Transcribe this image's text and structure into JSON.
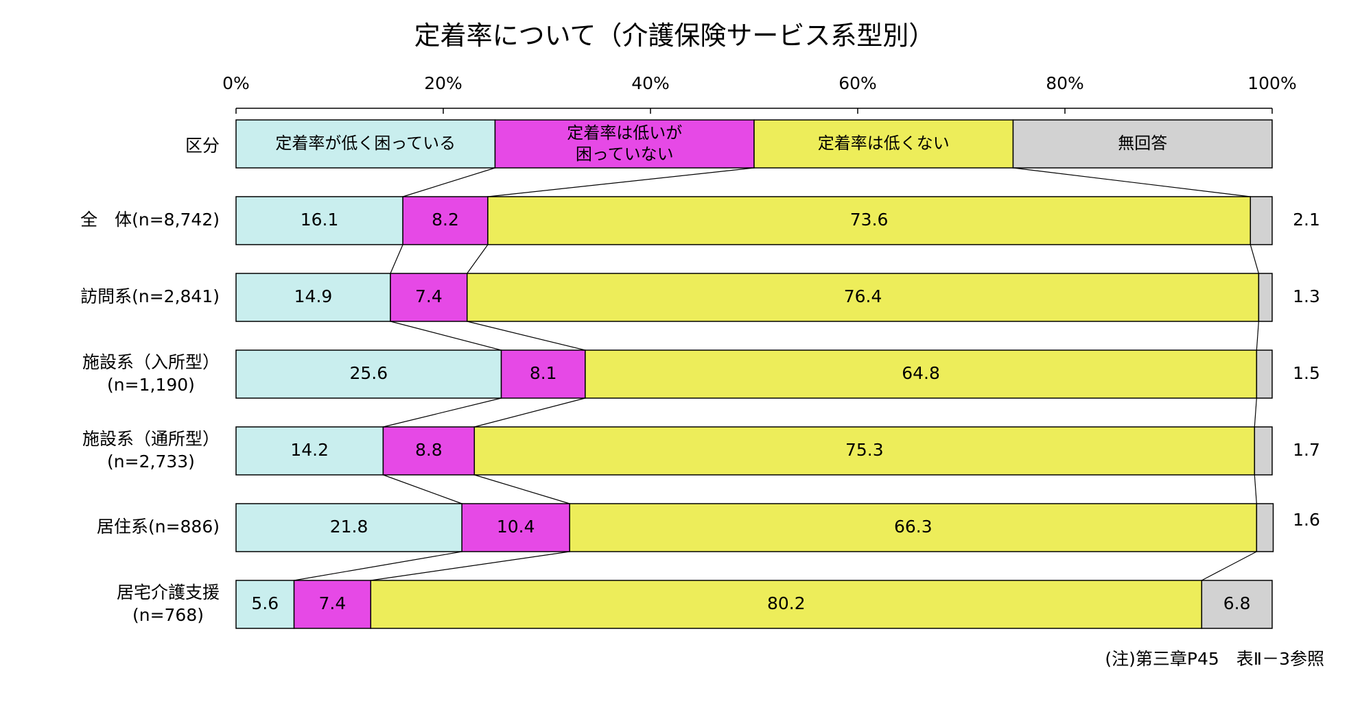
{
  "chart_data": {
    "type": "bar",
    "stacked": true,
    "orientation": "horizontal",
    "title": "定着率について（介護保険サービス系型別）",
    "legend_title": "区分",
    "categories": [
      "全　体(n=8,742)",
      "訪問系(n=2,841)",
      "施設系（入所型）\n(n=1,190)",
      "施設系（通所型）\n(n=2,733)",
      "居住系(n=886)",
      "居宅介護支援\n(n=768)"
    ],
    "series": [
      {
        "name": "定着率が低く困っている",
        "color": "#c9eeee",
        "values": [
          16.1,
          14.9,
          25.6,
          14.2,
          21.8,
          5.6
        ]
      },
      {
        "name": "定着率は低いが\n困っていない",
        "color": "#e649e6",
        "values": [
          8.2,
          7.4,
          8.1,
          8.8,
          10.4,
          7.4
        ]
      },
      {
        "name": "定着率は低くない",
        "color": "#eded5a",
        "values": [
          73.6,
          76.4,
          64.8,
          75.3,
          66.3,
          80.2
        ]
      },
      {
        "name": "無回答",
        "color": "#d2d2d2",
        "values": [
          2.1,
          1.3,
          1.5,
          1.7,
          1.6,
          6.8
        ]
      }
    ],
    "xlim": [
      0,
      100
    ],
    "xticks": [
      {
        "value": 0,
        "label": "0%"
      },
      {
        "value": 20,
        "label": "20%"
      },
      {
        "value": 40,
        "label": "40%"
      },
      {
        "value": 60,
        "label": "60%"
      },
      {
        "value": 80,
        "label": "80%"
      },
      {
        "value": 100,
        "label": "100%"
      }
    ],
    "note": "(注)第三章P45　表Ⅱ－3参照"
  }
}
